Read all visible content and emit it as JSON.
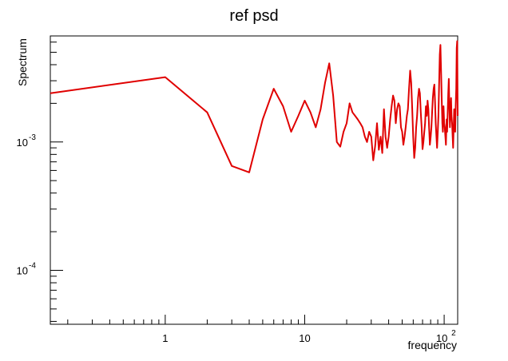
{
  "chart_data": {
    "type": "line",
    "title": "ref psd",
    "xlabel": "frequency",
    "ylabel": "Spectrum",
    "xscale": "log",
    "yscale": "log",
    "xlim": [
      0.15,
      125
    ],
    "ylim": [
      3.8e-05,
      0.0067
    ],
    "grid": false,
    "legend": "none",
    "line_color": "#e00000",
    "x_ticks": [
      {
        "value": 1,
        "label": "1"
      },
      {
        "value": 10,
        "label": "10"
      },
      {
        "value": 100,
        "base": "10",
        "exp": "2"
      }
    ],
    "y_ticks": [
      {
        "value": 0.001,
        "base": "10",
        "exp": "-3"
      },
      {
        "value": 0.0001,
        "base": "10",
        "exp": "-4"
      }
    ],
    "series": [
      {
        "x": [
          0.15,
          1,
          2,
          3,
          4,
          5,
          6,
          7,
          8,
          9,
          10,
          11,
          12,
          13,
          14,
          15,
          16,
          17,
          18,
          19,
          20,
          21,
          22,
          23,
          24,
          25,
          26,
          27,
          28,
          29,
          30,
          31,
          32,
          33,
          34,
          35,
          36,
          37,
          38,
          39,
          40,
          41,
          42,
          43,
          44,
          45,
          46,
          47,
          48,
          49,
          50,
          51,
          52,
          53,
          54,
          55,
          56,
          57,
          58,
          59,
          60,
          61,
          62,
          63,
          64,
          65,
          66,
          67,
          68,
          69,
          70,
          71,
          72,
          73,
          74,
          75,
          76,
          77,
          78,
          79,
          80,
          81,
          82,
          83,
          84,
          85,
          86,
          87,
          88,
          89,
          90,
          91,
          92,
          93,
          94,
          95,
          96,
          97,
          98,
          99,
          100,
          101,
          102,
          103,
          104,
          105,
          106,
          107,
          108,
          109,
          110,
          111,
          112,
          113,
          114,
          115,
          116,
          117,
          118,
          119,
          120,
          121,
          122,
          123,
          124,
          125
        ],
        "values": [
          0.0024,
          0.0032,
          0.0017,
          0.00065,
          0.00058,
          0.0015,
          0.0026,
          0.0019,
          0.0012,
          0.0016,
          0.0021,
          0.0017,
          0.0013,
          0.0018,
          0.0029,
          0.0041,
          0.0023,
          0.001,
          0.00092,
          0.0012,
          0.0014,
          0.002,
          0.0017,
          0.0016,
          0.0015,
          0.0014,
          0.0013,
          0.0011,
          0.001,
          0.0012,
          0.0011,
          0.00072,
          0.00093,
          0.0014,
          0.00087,
          0.0011,
          0.00082,
          0.0018,
          0.0011,
          0.0009,
          0.0011,
          0.0015,
          0.0019,
          0.0023,
          0.0021,
          0.0014,
          0.0018,
          0.002,
          0.0019,
          0.0013,
          0.0012,
          0.00095,
          0.0011,
          0.0013,
          0.0016,
          0.0018,
          0.0026,
          0.0036,
          0.0029,
          0.0018,
          0.0011,
          0.00075,
          0.0009,
          0.0013,
          0.0016,
          0.0022,
          0.0026,
          0.0024,
          0.0017,
          0.0013,
          0.00088,
          0.001,
          0.0012,
          0.0014,
          0.0019,
          0.0016,
          0.0021,
          0.0018,
          0.0013,
          0.00095,
          0.0011,
          0.0013,
          0.0017,
          0.0022,
          0.0026,
          0.0028,
          0.0021,
          0.0014,
          0.0011,
          0.0009,
          0.0012,
          0.0016,
          0.0029,
          0.0048,
          0.0057,
          0.0036,
          0.0022,
          0.0014,
          0.0012,
          0.0019,
          0.0014,
          0.0013,
          0.0011,
          0.00095,
          0.0015,
          0.0012,
          0.0017,
          0.0024,
          0.0031,
          0.0019,
          0.0013,
          0.0017,
          0.0022,
          0.0016,
          0.0014,
          0.0011,
          0.0009,
          0.0013,
          0.0018,
          0.0015,
          0.0012,
          0.0019,
          0.0026,
          0.0054,
          0.0061,
          0.0016
        ]
      }
    ]
  }
}
